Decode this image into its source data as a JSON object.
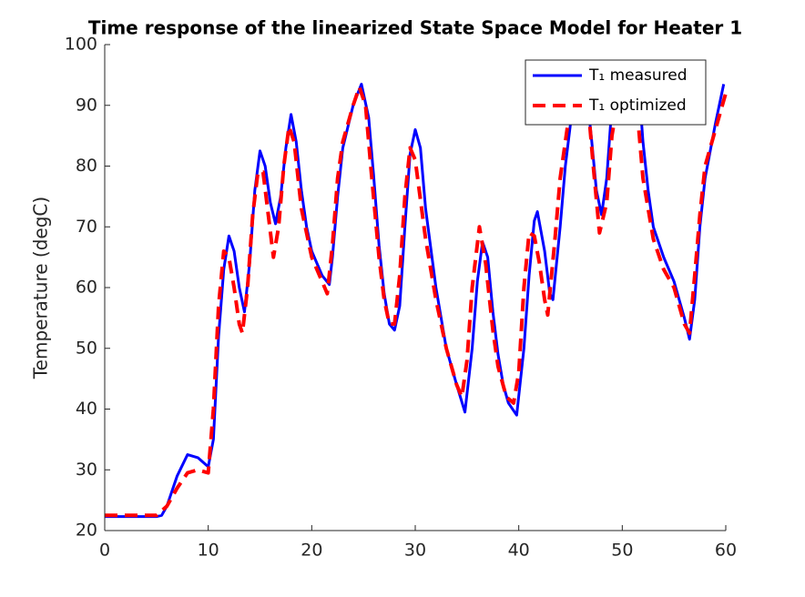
{
  "chart_data": {
    "type": "line",
    "title": "Time response of the linearized State Space Model for Heater 1",
    "y_label": "Temperature (degC)",
    "xlim": [
      0,
      60
    ],
    "xticks": [
      0,
      10,
      20,
      30,
      40,
      50,
      60
    ],
    "ylim": [
      20,
      100
    ],
    "yticks": [
      20,
      30,
      40,
      50,
      60,
      70,
      80,
      90,
      100
    ],
    "grid": false,
    "legend_position": "northeast",
    "series": [
      {
        "name": "T₁ measured",
        "color": "#0000ff",
        "style": "solid",
        "x": [
          0,
          5,
          5.5,
          6,
          7,
          8,
          9,
          10,
          10.5,
          11,
          11.5,
          12,
          12.5,
          13,
          13.5,
          14,
          14.5,
          15,
          15.5,
          16,
          16.5,
          17,
          17.5,
          18,
          18.5,
          19,
          19.5,
          20,
          21,
          21.7,
          22,
          22.5,
          23,
          24,
          24.8,
          25.5,
          26,
          26.5,
          27,
          27.5,
          28,
          28.5,
          29,
          29.5,
          30,
          30.5,
          31,
          32,
          33,
          34,
          34.8,
          35.5,
          36,
          36.5,
          37,
          37.5,
          38,
          38.5,
          39,
          39.8,
          40.5,
          41,
          41.5,
          41.8,
          42.5,
          43,
          43.3,
          44,
          44.5,
          45,
          45.5,
          46,
          46.5,
          47,
          47.5,
          48,
          48.5,
          49,
          50,
          51,
          51.7,
          52,
          52.5,
          53,
          54,
          55,
          56,
          56.5,
          57,
          57.5,
          58,
          59,
          59.8
        ],
        "values": [
          22.3,
          22.3,
          22.5,
          24,
          29,
          32.5,
          32,
          30.5,
          35,
          52,
          63,
          68.5,
          66,
          60,
          56,
          64,
          76,
          82.5,
          80,
          74,
          70.5,
          75,
          83,
          88.5,
          84,
          76,
          70,
          66,
          62,
          60.5,
          65,
          75,
          83,
          90,
          93.5,
          88,
          78,
          67,
          59,
          54,
          53,
          57,
          70,
          82,
          86,
          83,
          73,
          60,
          50,
          44,
          39.5,
          50,
          61,
          67.5,
          65,
          56,
          49,
          44,
          41,
          39,
          50,
          62,
          71,
          72.5,
          66,
          59,
          58,
          70,
          80,
          87,
          91,
          95,
          93,
          85,
          76,
          72,
          78,
          90,
          97,
          97,
          91,
          84,
          76,
          70,
          65,
          61,
          55,
          51.5,
          58,
          70,
          78,
          87,
          93.5
        ]
      },
      {
        "name": "T₁ optimized",
        "color": "#ff0000",
        "style": "dashed",
        "x": [
          0,
          5,
          6,
          7,
          8,
          9,
          10,
          10.5,
          11,
          11.5,
          12,
          12.5,
          13,
          13.3,
          13.8,
          14.3,
          14.8,
          15.3,
          15.8,
          16.3,
          16.8,
          17.3,
          17.8,
          18.3,
          19,
          20,
          21,
          21.5,
          22,
          22.5,
          23,
          24,
          24.6,
          25.2,
          25.7,
          26.5,
          27,
          27.5,
          28,
          28.5,
          29,
          29.5,
          30,
          31,
          32,
          33,
          34,
          34.5,
          35,
          35.5,
          36.2,
          36.8,
          37.5,
          38,
          38.8,
          39.5,
          40,
          40.5,
          41,
          41.5,
          42,
          42.5,
          42.8,
          43.5,
          44,
          44.5,
          45,
          46,
          46.7,
          47.2,
          47.8,
          48.5,
          49,
          50,
          51,
          51.5,
          52,
          53,
          54,
          55,
          56,
          56.5,
          57,
          57.5,
          58,
          59,
          60
        ],
        "values": [
          22.5,
          22.5,
          24,
          27,
          29.5,
          30,
          29.5,
          40,
          57,
          66,
          65,
          60,
          54,
          52.5,
          60,
          72,
          79,
          79,
          72,
          65,
          70,
          80,
          86.5,
          84,
          73,
          65,
          61,
          59,
          67,
          78,
          84,
          90,
          93,
          90,
          80,
          65,
          58,
          54,
          54,
          62,
          75,
          83,
          81,
          68,
          58,
          50,
          44,
          42,
          48,
          60,
          70,
          64,
          53,
          47,
          42,
          41,
          46,
          60,
          69,
          68.5,
          64,
          58,
          55.5,
          68,
          78,
          84,
          90,
          95,
          90,
          80,
          69,
          74,
          85,
          95,
          96,
          88,
          78,
          68,
          63,
          60,
          54,
          52.5,
          62,
          72,
          80,
          86,
          92
        ]
      }
    ]
  }
}
